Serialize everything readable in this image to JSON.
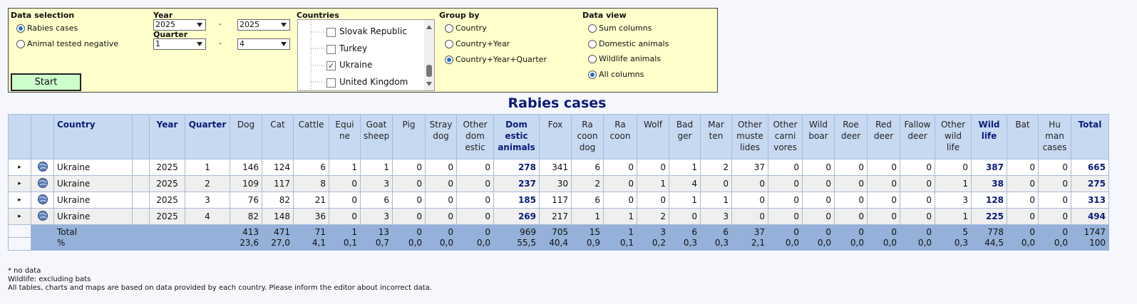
{
  "form": {
    "data_selection": {
      "label": "Data selection",
      "options": [
        "Rabies cases",
        "Animal tested negative"
      ],
      "selected": 0
    },
    "year": {
      "label": "Year",
      "from": "2025",
      "to": "2025"
    },
    "quarter": {
      "label": "Quarter",
      "from": "1",
      "to": "4"
    },
    "range_separator": "-",
    "start_button": "Start",
    "countries": {
      "label": "Countries",
      "items": [
        {
          "name": "Slovak Republic",
          "checked": false
        },
        {
          "name": "Turkey",
          "checked": false
        },
        {
          "name": "Ukraine",
          "checked": true
        },
        {
          "name": "United Kingdom",
          "checked": false
        }
      ]
    },
    "group_by": {
      "label": "Group by",
      "options": [
        "Country",
        "Country+Year",
        "Country+Year+Quarter"
      ],
      "selected": 2
    },
    "data_view": {
      "label": "Data view",
      "options": [
        "Sum columns",
        "Domestic animals",
        "Wildlife animals",
        "All columns"
      ],
      "selected": 3
    }
  },
  "table": {
    "title": "Rabies cases",
    "key_columns": [
      "Country",
      "Year",
      "Quarter"
    ],
    "value_columns": [
      {
        "label": "Dog"
      },
      {
        "label": "Cat"
      },
      {
        "label": "Cattle"
      },
      {
        "label": "Equi\nne"
      },
      {
        "label": "Goat\nsheep"
      },
      {
        "label": "Pig"
      },
      {
        "label": "Stray\ndog"
      },
      {
        "label": "Other\ndom\nestic"
      },
      {
        "label": "Dom\nestic\nanimals",
        "emphasis": true
      },
      {
        "label": "Fox"
      },
      {
        "label": "Ra\ncoon\ndog"
      },
      {
        "label": "Ra\ncoon"
      },
      {
        "label": "Wolf"
      },
      {
        "label": "Bad\nger"
      },
      {
        "label": "Mar\nten"
      },
      {
        "label": "Other\nmuste\nlides"
      },
      {
        "label": "Other\ncarni\nvores"
      },
      {
        "label": "Wild\nboar"
      },
      {
        "label": "Roe\ndeer"
      },
      {
        "label": "Red\ndeer"
      },
      {
        "label": "Fallow\ndeer"
      },
      {
        "label": "Other\nwild\nlife"
      },
      {
        "label": "Wild\nlife",
        "emphasis": true
      },
      {
        "label": "Bat"
      },
      {
        "label": "Hu\nman\ncases"
      },
      {
        "label": "Total",
        "emphasis": true
      }
    ],
    "rows": [
      {
        "country": "Ukraine",
        "year": 2025,
        "quarter": 1,
        "values": [
          146,
          124,
          6,
          1,
          1,
          0,
          0,
          0,
          278,
          341,
          6,
          0,
          0,
          1,
          2,
          37,
          0,
          0,
          0,
          0,
          0,
          0,
          387,
          0,
          0,
          665
        ]
      },
      {
        "country": "Ukraine",
        "year": 2025,
        "quarter": 2,
        "values": [
          109,
          117,
          8,
          0,
          3,
          0,
          0,
          0,
          237,
          30,
          2,
          0,
          1,
          4,
          0,
          0,
          0,
          0,
          0,
          0,
          0,
          1,
          38,
          0,
          0,
          275
        ]
      },
      {
        "country": "Ukraine",
        "year": 2025,
        "quarter": 3,
        "values": [
          76,
          82,
          21,
          0,
          6,
          0,
          0,
          0,
          185,
          117,
          6,
          0,
          0,
          1,
          1,
          0,
          0,
          0,
          0,
          0,
          0,
          3,
          128,
          0,
          0,
          313
        ]
      },
      {
        "country": "Ukraine",
        "year": 2025,
        "quarter": 4,
        "values": [
          82,
          148,
          36,
          0,
          3,
          0,
          0,
          0,
          269,
          217,
          1,
          1,
          2,
          0,
          3,
          0,
          0,
          0,
          0,
          0,
          0,
          1,
          225,
          0,
          0,
          494
        ]
      }
    ],
    "total": {
      "label": "Total",
      "values": [
        413,
        471,
        71,
        1,
        13,
        0,
        0,
        0,
        969,
        705,
        15,
        1,
        3,
        6,
        6,
        37,
        0,
        0,
        0,
        0,
        0,
        5,
        778,
        0,
        0,
        1747
      ]
    },
    "percent": {
      "label": "%",
      "values": [
        "23,6",
        "27,0",
        "4,1",
        "0,1",
        "0,7",
        "0,0",
        "0,0",
        "0,0",
        "55,5",
        "40,4",
        "0,9",
        "0,1",
        "0,2",
        "0,3",
        "0,3",
        "2,1",
        "0,0",
        "0,0",
        "0,0",
        "0,0",
        "0,0",
        "0,3",
        "44,5",
        "0,0",
        "0,0",
        "100"
      ]
    }
  },
  "notes": [
    "* no data",
    "Wildlife: excluding bats",
    "All tables, charts and maps are based on data provided by each country. Please inform the editor about incorrect data."
  ]
}
